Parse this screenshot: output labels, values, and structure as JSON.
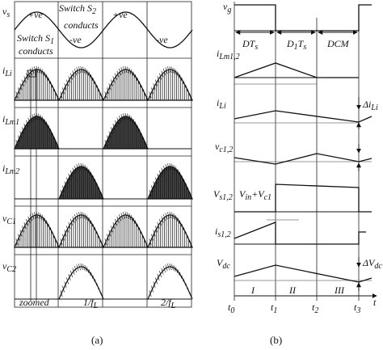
{
  "panel_a": {
    "caption": "(a)",
    "row_labels": {
      "vs": "v",
      "vs_sub": "s",
      "iLi": "i",
      "iLi_sub": "Li",
      "iLm1": "i",
      "iLm1_sub": "Lm1",
      "iLm2": "i",
      "iLm2_sub": "Lm2",
      "vC1": "v",
      "vC1_sub": "C1",
      "vC2": "v",
      "vC2_sub": "C2"
    },
    "annotations": {
      "plus_ve": "+ve",
      "minus_ve": "-ve",
      "switch_s2_line1": "Switch S",
      "switch_s2_sub": "2",
      "switch_s2_line2": "conducts",
      "switch_s1_line1": "Switch S",
      "switch_s1_sub": "1",
      "switch_s1_line2": "conducts"
    },
    "time_labels": {
      "zoomed": "zoomed",
      "one_over_fl": "1/f",
      "one_over_fl_sub": "L",
      "two_over_fl": "2/f",
      "two_over_fl_sub": "L"
    }
  },
  "panel_b": {
    "caption": "(b)",
    "row_labels": {
      "vg": "v",
      "vg_sub": "g",
      "iLm12": "i",
      "iLm12_sub": "Lm1,2",
      "iLi": "i",
      "iLi_sub": "Li",
      "vc12": "v",
      "vc12_sub": "c1,2",
      "Vs12": "V",
      "Vs12_sub": "s1,2",
      "is12": "i",
      "is12_sub": "s1,2",
      "Vdc": "V",
      "Vdc_sub": "dc"
    },
    "annotations": {
      "dts": "DT",
      "dts_sub": "s",
      "d1ts_a": "D",
      "d1ts_a_sub": "1",
      "d1ts_b": "T",
      "d1ts_b_sub": "s",
      "dcm": "DCM",
      "delta_iLi": "Δi",
      "delta_iLi_sub": "Li",
      "delta_vdc": "ΔV",
      "delta_vdc_sub": "dc",
      "vin_plus_vc1": "V",
      "vin_sub": "in",
      "plus": "+",
      "vc1": "V",
      "vc1_sub": "c1"
    },
    "intervals": {
      "I": "I",
      "II": "II",
      "III": "III"
    },
    "time_axis": {
      "t": "t",
      "t0": "t",
      "t0_sub": "0",
      "t1": "t",
      "t1_sub": "1",
      "t2": "t",
      "t2_sub": "2",
      "t3": "t",
      "t3_sub": "3"
    }
  }
}
